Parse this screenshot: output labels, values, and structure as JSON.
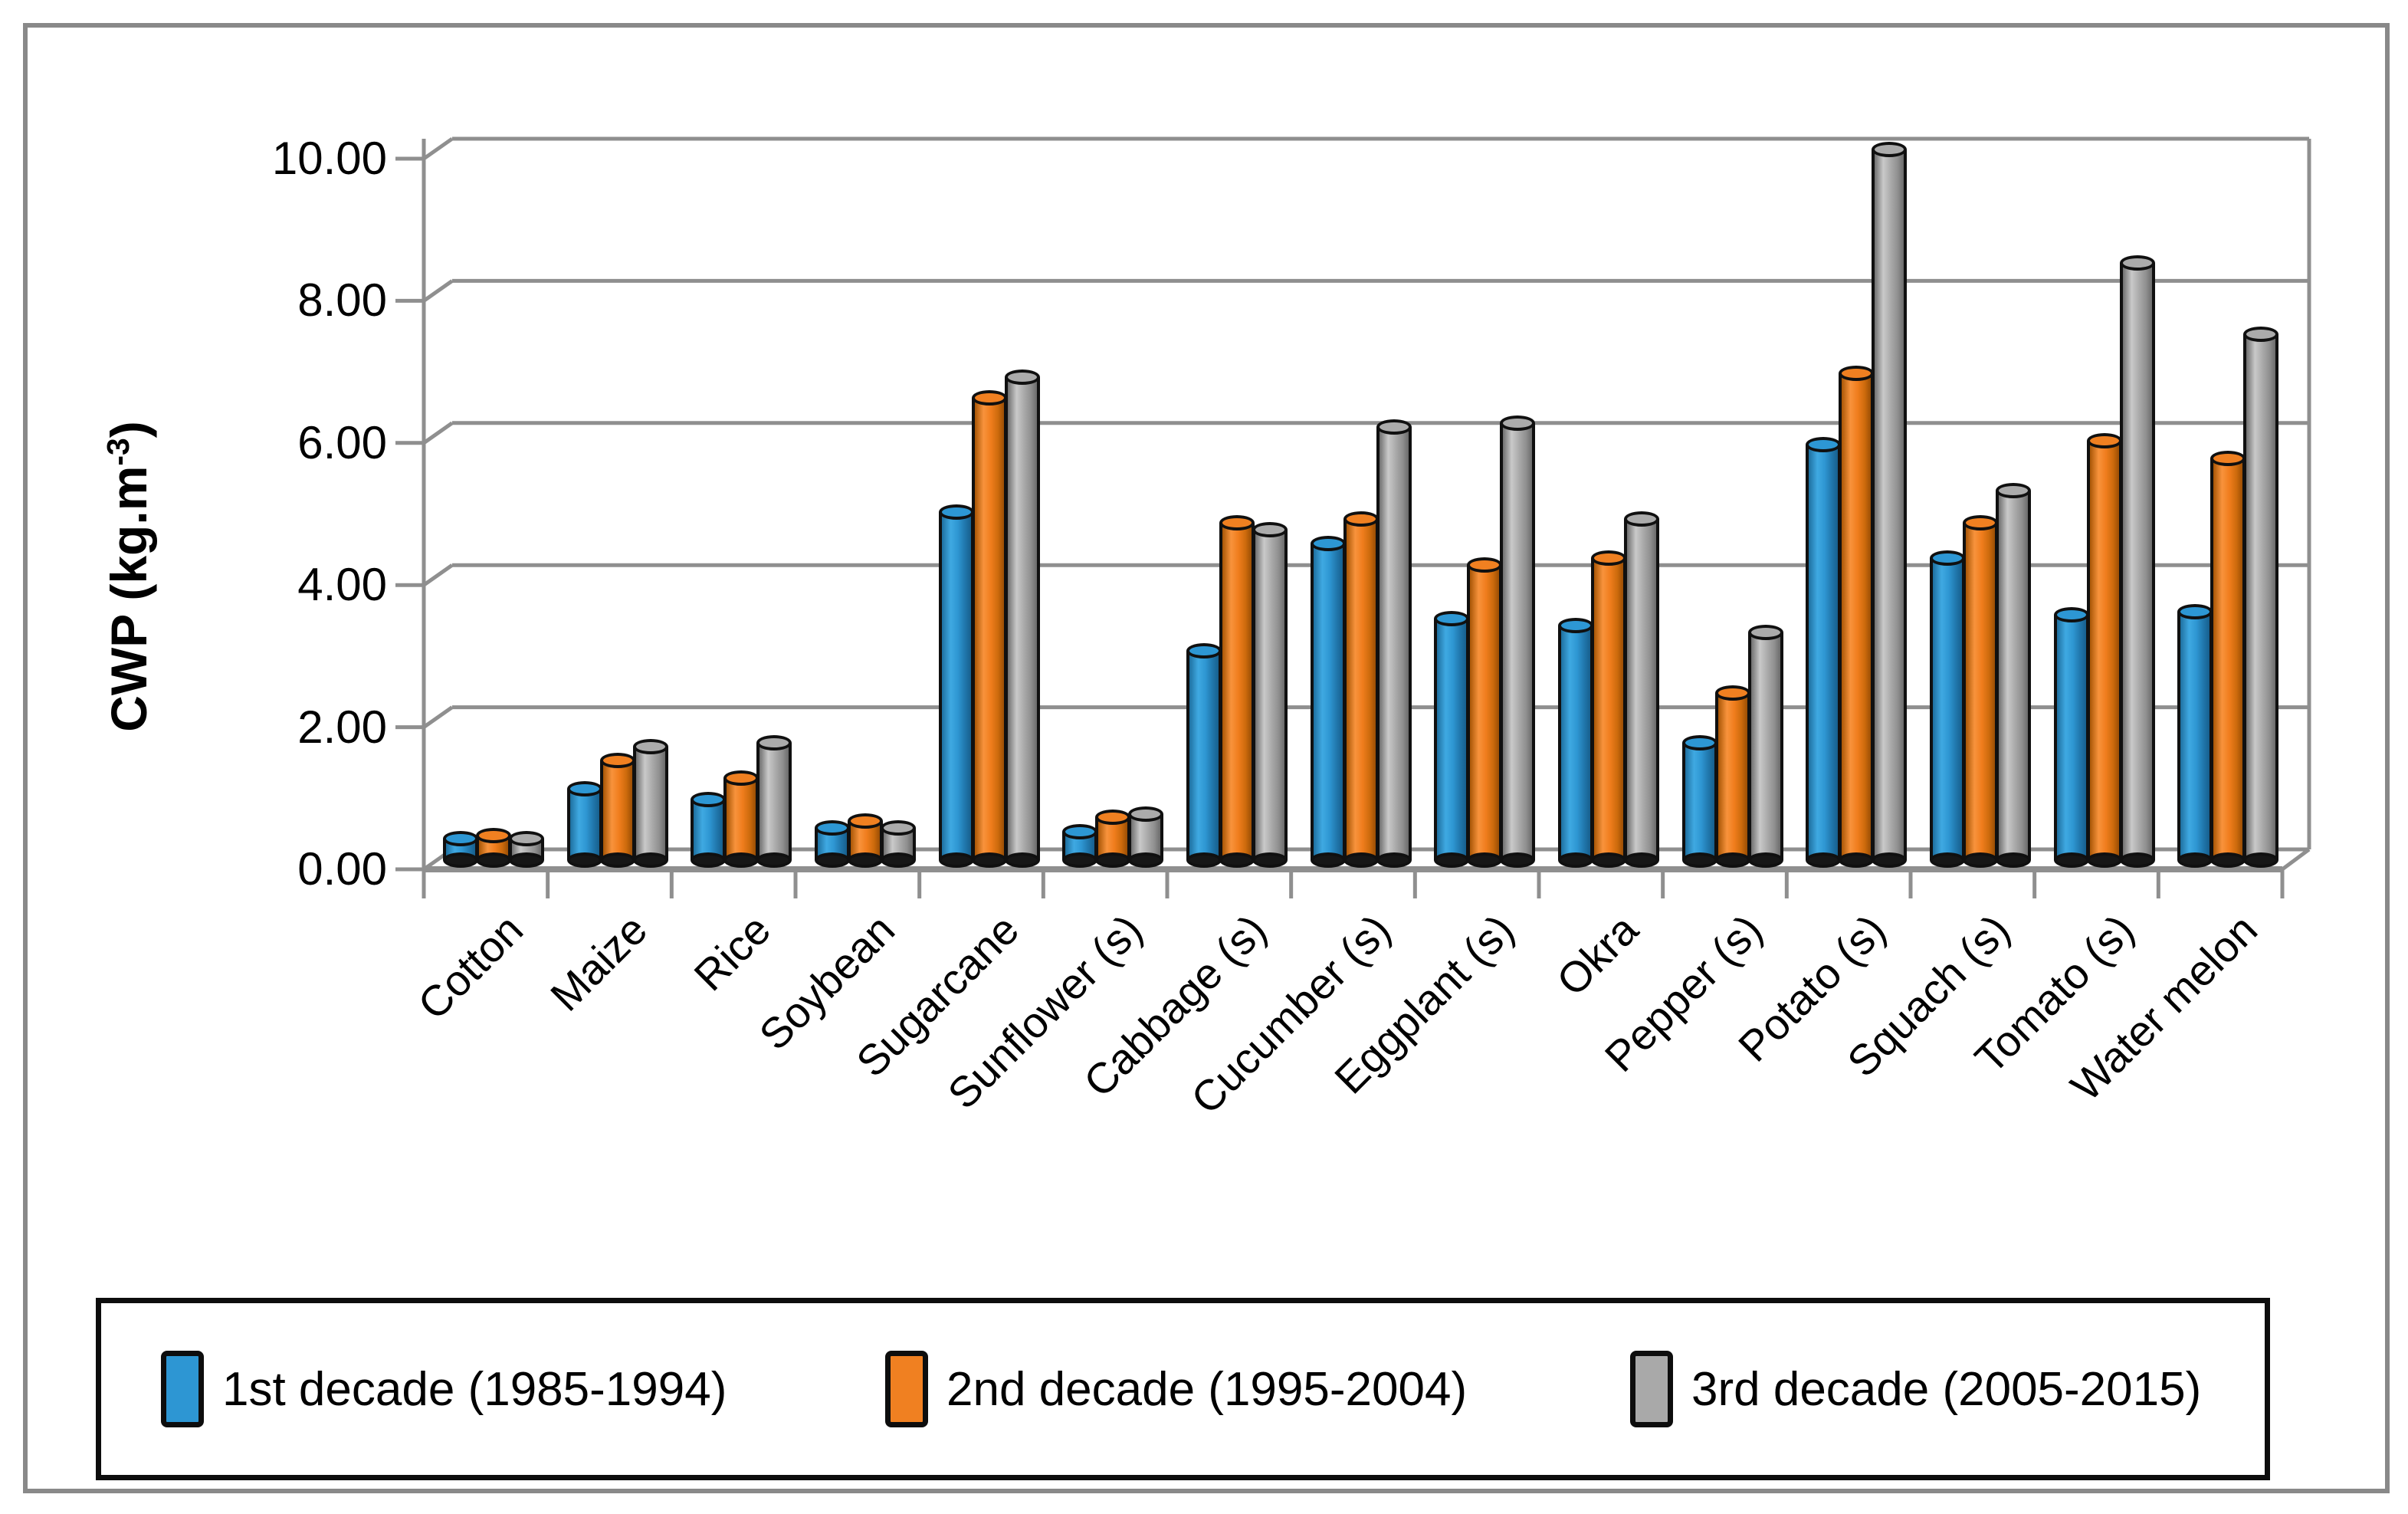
{
  "figure": {
    "background": "#ffffff",
    "border_color": "#898989",
    "gridline_color": "#8f8f8f"
  },
  "y_axis": {
    "title_prefix": "CWP (kg.m",
    "title_sup": "-3",
    "title_suffix": ")",
    "ticks": [
      "0.00",
      "2.00",
      "4.00",
      "6.00",
      "8.00",
      "10.00"
    ],
    "min": 0,
    "max": 10,
    "step": 2
  },
  "chart_data": {
    "type": "bar",
    "subtype": "3d-cylinder",
    "title": "",
    "xlabel": "",
    "ylabel": "CWP (kg.m-3)",
    "ylim": [
      0,
      10
    ],
    "ytick_step": 2,
    "grid": true,
    "legend_position": "bottom",
    "categories": [
      "Cotton",
      "Maize",
      "Rice",
      "Soybean",
      "Sugarcane",
      "Sunflower (s)",
      "Cabbage (s)",
      "Cucumber (s)",
      "Eggplant (s)",
      "Okra",
      "Pepper (s)",
      "Potato (s)",
      "Squach (s)",
      "Tomato (s)",
      "Water melon"
    ],
    "series": [
      {
        "name": "1st decade (1985-1994)",
        "color": "#2d96d3",
        "values": [
          0.3,
          1.0,
          0.85,
          0.45,
          4.9,
          0.4,
          2.95,
          4.45,
          3.4,
          3.3,
          1.65,
          5.85,
          4.25,
          3.45,
          3.5
        ]
      },
      {
        "name": "2nd decade (1995-2004)",
        "color": "#f08021",
        "values": [
          0.35,
          1.4,
          1.15,
          0.55,
          6.5,
          0.6,
          4.75,
          4.8,
          4.15,
          4.25,
          2.35,
          6.85,
          4.75,
          5.9,
          5.65
        ]
      },
      {
        "name": "3rd decade (2005-2015)",
        "color": "#a9a9a9",
        "values": [
          0.3,
          1.6,
          1.65,
          0.45,
          6.8,
          0.65,
          4.65,
          6.1,
          6.15,
          4.8,
          3.2,
          10.0,
          5.2,
          8.4,
          7.4
        ]
      }
    ]
  }
}
